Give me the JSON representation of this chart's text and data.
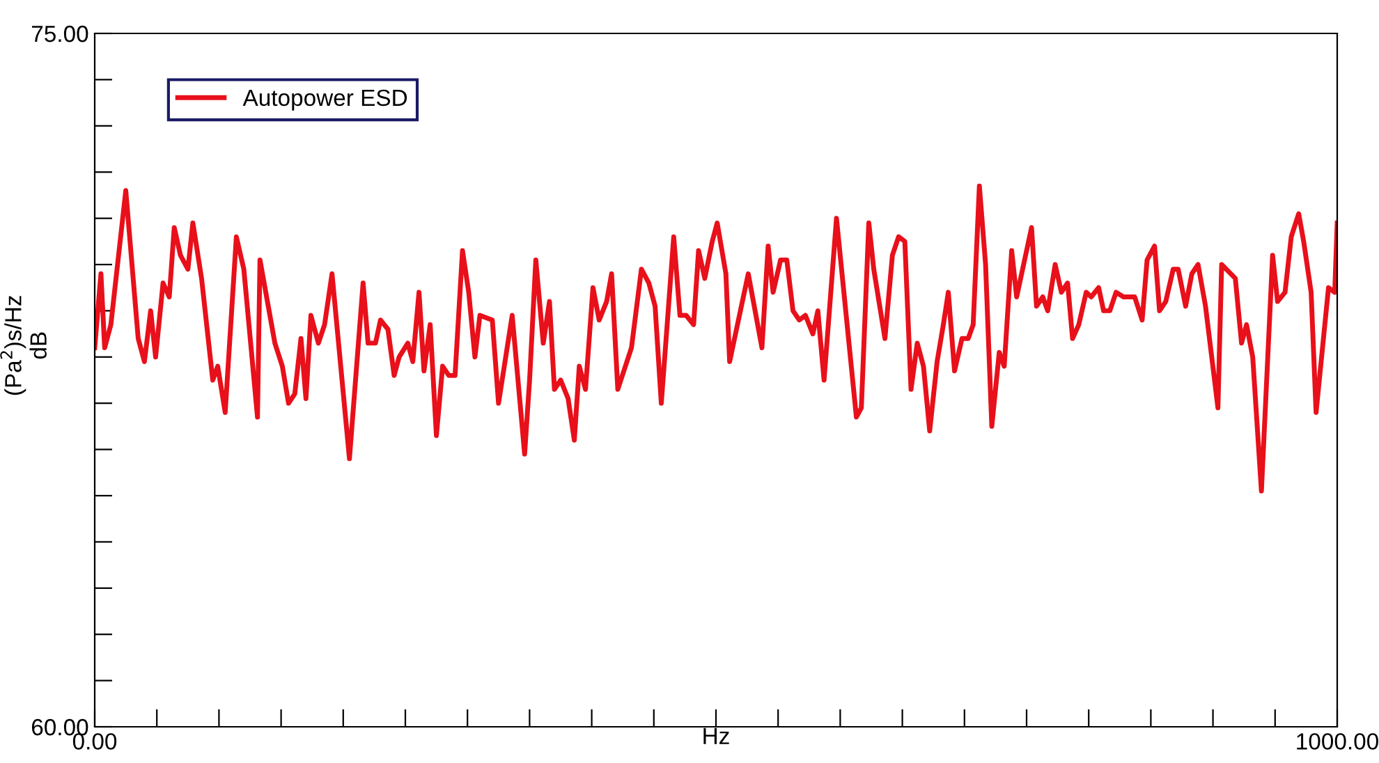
{
  "chart_data": {
    "type": "line",
    "xlabel": "Hz",
    "ylabel": "(Pa$^{2}$)s/Hz\ndB",
    "xlim": [
      0,
      1000
    ],
    "ylim": [
      60,
      75
    ],
    "xticks": [
      {
        "value": 0,
        "label": "0.00"
      },
      {
        "value": 50,
        "label": null
      },
      {
        "value": 100,
        "label": null
      },
      {
        "value": 150,
        "label": null
      },
      {
        "value": 200,
        "label": null
      },
      {
        "value": 250,
        "label": null
      },
      {
        "value": 300,
        "label": null
      },
      {
        "value": 350,
        "label": null
      },
      {
        "value": 400,
        "label": null
      },
      {
        "value": 450,
        "label": null
      },
      {
        "value": 500,
        "label": null
      },
      {
        "value": 550,
        "label": null
      },
      {
        "value": 600,
        "label": null
      },
      {
        "value": 650,
        "label": null
      },
      {
        "value": 700,
        "label": null
      },
      {
        "value": 750,
        "label": null
      },
      {
        "value": 800,
        "label": null
      },
      {
        "value": 850,
        "label": null
      },
      {
        "value": 900,
        "label": null
      },
      {
        "value": 950,
        "label": null
      },
      {
        "value": 1000,
        "label": "1000.00"
      }
    ],
    "yticks": [
      {
        "value": 60,
        "label": "60.00"
      },
      {
        "value": 61,
        "label": null
      },
      {
        "value": 62,
        "label": null
      },
      {
        "value": 63,
        "label": null
      },
      {
        "value": 64,
        "label": null
      },
      {
        "value": 65,
        "label": null
      },
      {
        "value": 66,
        "label": null
      },
      {
        "value": 67,
        "label": null
      },
      {
        "value": 68,
        "label": null
      },
      {
        "value": 69,
        "label": null
      },
      {
        "value": 70,
        "label": null
      },
      {
        "value": 71,
        "label": null
      },
      {
        "value": 72,
        "label": null
      },
      {
        "value": 73,
        "label": null
      },
      {
        "value": 74,
        "label": null
      },
      {
        "value": 75,
        "label": "75.00"
      }
    ],
    "grid": false,
    "legend": "top left",
    "marker": "none",
    "line_style": "solid",
    "x": [
      0,
      5,
      8,
      13,
      25,
      35,
      40,
      45,
      49,
      55,
      60,
      64,
      69,
      75,
      79,
      86,
      95,
      99,
      105,
      114,
      120,
      131,
      133,
      145,
      151,
      156,
      161,
      166,
      170,
      174,
      180,
      185,
      191,
      205,
      216,
      220,
      226,
      230,
      236,
      241,
      245,
      252,
      256,
      261,
      265,
      270,
      275,
      280,
      285,
      290,
      296,
      301,
      306,
      310,
      320,
      325,
      336,
      346,
      350,
      355,
      361,
      366,
      370,
      375,
      381,
      386,
      390,
      395,
      401,
      406,
      412,
      416,
      421,
      432,
      440,
      446,
      451,
      456,
      466,
      471,
      476,
      482,
      486,
      491,
      497,
      501,
      508,
      511,
      526,
      537,
      542,
      546,
      552,
      557,
      562,
      567,
      572,
      578,
      582,
      587,
      597,
      613,
      617,
      623,
      627,
      636,
      642,
      647,
      652,
      657,
      662,
      667,
      672,
      678,
      683,
      687,
      692,
      698,
      703,
      707,
      712,
      717,
      722,
      728,
      732,
      738,
      742,
      754,
      758,
      763,
      767,
      773,
      778,
      783,
      787,
      792,
      798,
      802,
      808,
      812,
      817,
      822,
      828,
      837,
      843,
      847,
      853,
      857,
      862,
      868,
      872,
      878,
      883,
      888,
      894,
      904,
      907,
      918,
      923,
      927,
      932,
      939,
      948,
      952,
      958,
      963,
      969,
      973,
      979,
      983,
      993,
      998,
      1000
    ],
    "series": [
      {
        "name": "Autopower ESD",
        "color": "#e8101a",
        "values": [
          68.2,
          69.8,
          68.2,
          68.7,
          71.6,
          68.4,
          67.9,
          69.0,
          68.0,
          69.6,
          69.3,
          70.8,
          70.2,
          69.9,
          70.9,
          69.7,
          67.5,
          67.8,
          66.8,
          70.6,
          69.9,
          66.7,
          70.1,
          68.3,
          67.8,
          67.0,
          67.2,
          68.4,
          67.1,
          68.9,
          68.3,
          68.7,
          69.8,
          65.8,
          69.6,
          68.3,
          68.3,
          68.8,
          68.6,
          67.6,
          68.0,
          68.3,
          67.9,
          69.4,
          67.7,
          68.7,
          66.3,
          67.8,
          67.6,
          67.6,
          70.3,
          69.4,
          68.0,
          68.9,
          68.8,
          67.0,
          68.9,
          65.9,
          67.5,
          70.1,
          68.3,
          69.2,
          67.3,
          67.5,
          67.1,
          66.2,
          67.8,
          67.3,
          69.5,
          68.8,
          69.2,
          69.8,
          67.3,
          68.2,
          69.9,
          69.6,
          69.1,
          67.0,
          70.6,
          68.9,
          68.9,
          68.7,
          70.3,
          69.7,
          70.5,
          70.9,
          69.8,
          67.9,
          69.8,
          68.2,
          70.4,
          69.4,
          70.1,
          70.1,
          69.0,
          68.8,
          68.9,
          68.5,
          69.0,
          67.5,
          71.0,
          66.7,
          66.9,
          70.9,
          69.9,
          68.4,
          70.2,
          70.6,
          70.5,
          67.3,
          68.3,
          67.8,
          66.4,
          67.9,
          68.7,
          69.4,
          67.7,
          68.4,
          68.4,
          68.7,
          71.7,
          70.0,
          66.5,
          68.1,
          67.8,
          70.3,
          69.3,
          70.8,
          69.1,
          69.3,
          69.0,
          70.0,
          69.4,
          69.6,
          68.4,
          68.7,
          69.4,
          69.3,
          69.5,
          69.0,
          69.0,
          69.4,
          69.3,
          69.3,
          68.8,
          70.1,
          70.4,
          69.0,
          69.2,
          69.9,
          69.9,
          69.1,
          69.8,
          70.0,
          69.1,
          66.9,
          70.0,
          69.7,
          68.3,
          68.7,
          68.0,
          65.1,
          70.2,
          69.2,
          69.4,
          70.6,
          71.1,
          70.5,
          69.4,
          66.8,
          69.5,
          69.4,
          70.9
        ]
      }
    ]
  }
}
